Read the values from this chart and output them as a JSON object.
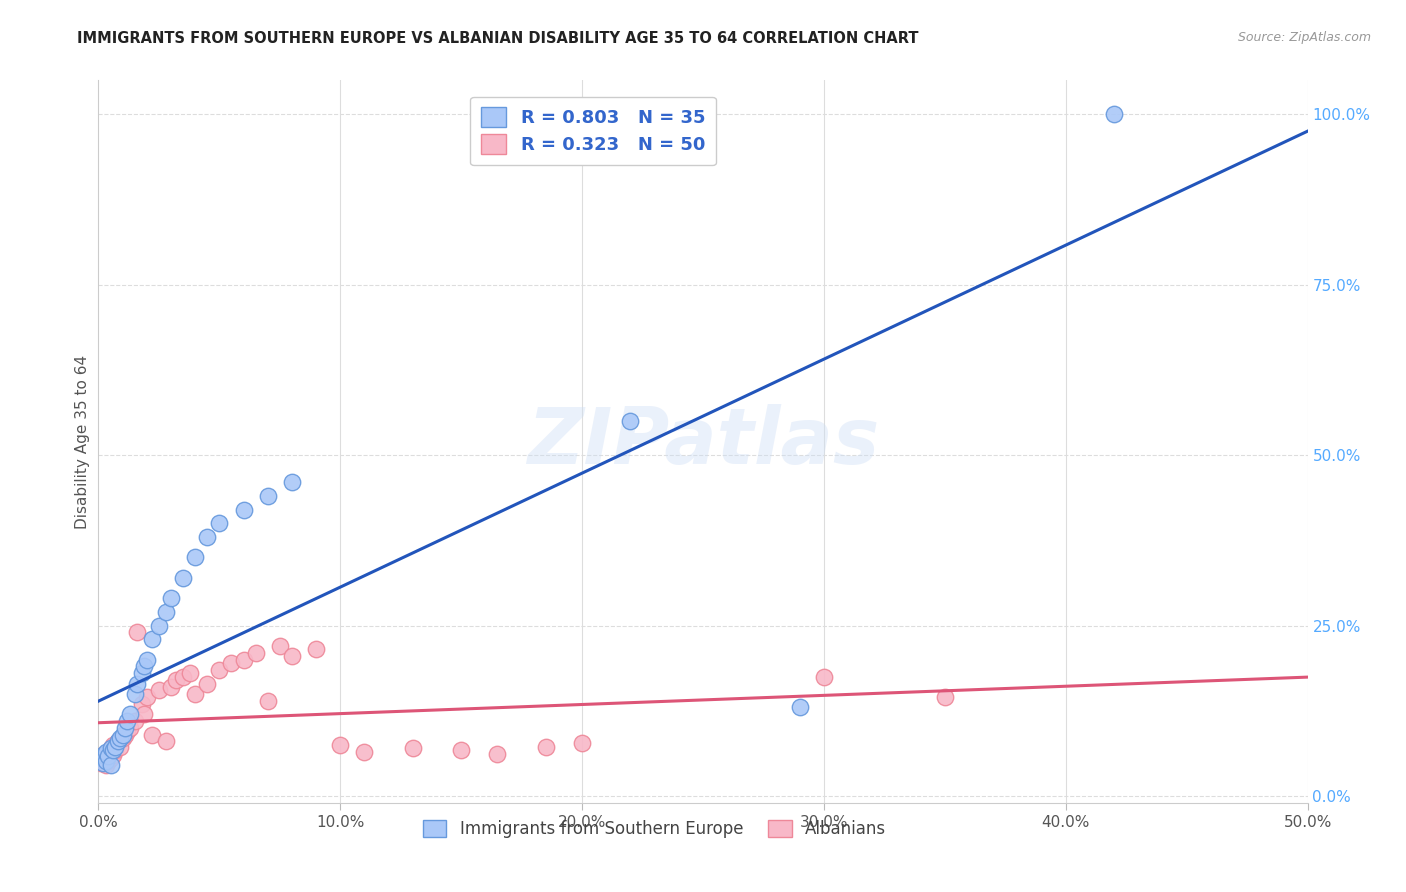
{
  "title": "IMMIGRANTS FROM SOUTHERN EUROPE VS ALBANIAN DISABILITY AGE 35 TO 64 CORRELATION CHART",
  "source": "Source: ZipAtlas.com",
  "ylabel": "Disability Age 35 to 64",
  "xlim": [
    0.0,
    0.5
  ],
  "ylim": [
    -0.01,
    1.05
  ],
  "xticks": [
    0.0,
    0.1,
    0.2,
    0.3,
    0.4,
    0.5
  ],
  "xtick_labels": [
    "0.0%",
    "10.0%",
    "20.0%",
    "30.0%",
    "40.0%",
    "50.0%"
  ],
  "yticks_right": [
    0.0,
    0.25,
    0.5,
    0.75,
    1.0
  ],
  "ytick_labels_right": [
    "0.0%",
    "25.0%",
    "50.0%",
    "75.0%",
    "100.0%"
  ],
  "blue_color": "#aac8f8",
  "blue_edge_color": "#6699dd",
  "pink_color": "#f8b8c8",
  "pink_edge_color": "#ee8899",
  "blue_line_color": "#2255bb",
  "pink_line_color": "#dd5577",
  "R_blue": 0.803,
  "N_blue": 35,
  "R_pink": 0.323,
  "N_pink": 50,
  "blue_scatter_x": [
    0.001,
    0.002,
    0.002,
    0.003,
    0.003,
    0.004,
    0.005,
    0.005,
    0.006,
    0.007,
    0.008,
    0.009,
    0.01,
    0.011,
    0.012,
    0.013,
    0.015,
    0.016,
    0.018,
    0.019,
    0.02,
    0.022,
    0.025,
    0.028,
    0.03,
    0.035,
    0.04,
    0.045,
    0.05,
    0.06,
    0.07,
    0.08,
    0.22,
    0.29,
    0.42
  ],
  "blue_scatter_y": [
    0.055,
    0.048,
    0.06,
    0.052,
    0.065,
    0.058,
    0.07,
    0.045,
    0.068,
    0.072,
    0.08,
    0.085,
    0.09,
    0.1,
    0.11,
    0.12,
    0.15,
    0.165,
    0.18,
    0.19,
    0.2,
    0.23,
    0.25,
    0.27,
    0.29,
    0.32,
    0.35,
    0.38,
    0.4,
    0.42,
    0.44,
    0.46,
    0.55,
    0.13,
    1.0
  ],
  "pink_scatter_x": [
    0.001,
    0.001,
    0.002,
    0.002,
    0.003,
    0.003,
    0.004,
    0.004,
    0.005,
    0.005,
    0.006,
    0.006,
    0.007,
    0.008,
    0.009,
    0.01,
    0.011,
    0.012,
    0.013,
    0.015,
    0.016,
    0.018,
    0.019,
    0.02,
    0.022,
    0.025,
    0.028,
    0.03,
    0.032,
    0.035,
    0.038,
    0.04,
    0.045,
    0.05,
    0.055,
    0.06,
    0.065,
    0.07,
    0.075,
    0.08,
    0.09,
    0.1,
    0.11,
    0.13,
    0.15,
    0.165,
    0.185,
    0.2,
    0.3,
    0.35
  ],
  "pink_scatter_y": [
    0.048,
    0.055,
    0.05,
    0.06,
    0.045,
    0.058,
    0.052,
    0.065,
    0.055,
    0.07,
    0.06,
    0.075,
    0.068,
    0.08,
    0.072,
    0.085,
    0.09,
    0.095,
    0.1,
    0.11,
    0.24,
    0.135,
    0.12,
    0.145,
    0.09,
    0.155,
    0.08,
    0.16,
    0.17,
    0.175,
    0.18,
    0.15,
    0.165,
    0.185,
    0.195,
    0.2,
    0.21,
    0.14,
    0.22,
    0.205,
    0.215,
    0.075,
    0.065,
    0.07,
    0.068,
    0.062,
    0.072,
    0.078,
    0.175,
    0.145
  ],
  "watermark": "ZIPatlas",
  "background_color": "#ffffff",
  "grid_color": "#dddddd",
  "title_color": "#222222",
  "axis_label_color": "#555555",
  "right_tick_color": "#55aaff",
  "legend_label_color": "#3366cc"
}
